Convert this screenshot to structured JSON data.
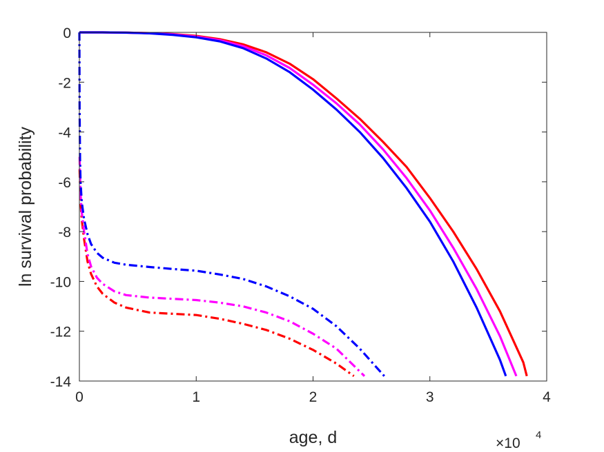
{
  "chart_data": {
    "type": "line",
    "title": "",
    "xlabel": "age, d",
    "ylabel": "ln survival probability",
    "x_multiplier": {
      "base": "×10",
      "exponent": "4"
    },
    "xlim": [
      0,
      40000
    ],
    "ylim": [
      -14,
      0
    ],
    "xticks": [
      0,
      10000,
      20000,
      30000,
      40000
    ],
    "xtick_labels": [
      "0",
      "1",
      "2",
      "3",
      "4"
    ],
    "yticks": [
      0,
      -2,
      -4,
      -6,
      -8,
      -10,
      -12,
      -14
    ],
    "ytick_labels": [
      "0",
      "-2",
      "-4",
      "-6",
      "-8",
      "-10",
      "-12",
      "-14"
    ],
    "grid": false,
    "box": true,
    "series": [
      {
        "color": "#ff0000",
        "style": "solid",
        "x": [
          0,
          2000,
          4000,
          6000,
          8000,
          10000,
          12000,
          14000,
          16000,
          18000,
          20000,
          22000,
          24000,
          26000,
          28000,
          30000,
          32000,
          34000,
          36000,
          38000,
          38300
        ],
        "y": [
          0,
          0,
          -0.01,
          -0.03,
          -0.07,
          -0.14,
          -0.27,
          -0.48,
          -0.8,
          -1.26,
          -1.88,
          -2.65,
          -3.47,
          -4.4,
          -5.4,
          -6.65,
          -8.0,
          -9.5,
          -11.2,
          -13.25,
          -13.8
        ]
      },
      {
        "color": "#ff00ff",
        "style": "solid",
        "x": [
          0,
          2000,
          4000,
          6000,
          8000,
          10000,
          12000,
          14000,
          16000,
          18000,
          20000,
          22000,
          24000,
          26000,
          28000,
          30000,
          32000,
          34000,
          36000,
          37400
        ],
        "y": [
          0,
          0,
          -0.01,
          -0.03,
          -0.08,
          -0.17,
          -0.31,
          -0.55,
          -0.92,
          -1.43,
          -2.1,
          -2.85,
          -3.7,
          -4.7,
          -5.85,
          -7.15,
          -8.65,
          -10.3,
          -12.2,
          -13.8
        ]
      },
      {
        "color": "#0000ff",
        "style": "solid",
        "x": [
          0,
          2000,
          4000,
          6000,
          8000,
          10000,
          12000,
          14000,
          16000,
          18000,
          20000,
          22000,
          24000,
          26000,
          28000,
          30000,
          32000,
          34000,
          36000,
          36500
        ],
        "y": [
          0,
          0,
          -0.01,
          -0.04,
          -0.1,
          -0.2,
          -0.36,
          -0.63,
          -1.05,
          -1.6,
          -2.3,
          -3.1,
          -4.0,
          -5.05,
          -6.25,
          -7.6,
          -9.2,
          -11.05,
          -13.15,
          -13.8
        ]
      },
      {
        "color": "#ff0000",
        "style": "dashdot",
        "x": [
          20,
          100,
          200,
          400,
          700,
          1000,
          1500,
          2000,
          3000,
          4000,
          6000,
          8000,
          10000,
          12000,
          14000,
          16000,
          18000,
          20000,
          22000,
          23500
        ],
        "y": [
          -5.5,
          -6.8,
          -7.5,
          -8.3,
          -9.2,
          -9.7,
          -10.2,
          -10.5,
          -10.85,
          -11.05,
          -11.25,
          -11.3,
          -11.35,
          -11.5,
          -11.7,
          -11.95,
          -12.3,
          -12.75,
          -13.3,
          -13.8
        ]
      },
      {
        "color": "#ff00ff",
        "style": "dashdot",
        "x": [
          20,
          100,
          200,
          400,
          700,
          1000,
          1500,
          2000,
          3000,
          4000,
          6000,
          8000,
          10000,
          12000,
          14000,
          16000,
          18000,
          20000,
          22000,
          24400
        ],
        "y": [
          -5.0,
          -6.5,
          -7.2,
          -8.0,
          -8.9,
          -9.4,
          -9.85,
          -10.1,
          -10.4,
          -10.55,
          -10.65,
          -10.7,
          -10.75,
          -10.85,
          -11.0,
          -11.25,
          -11.6,
          -12.1,
          -12.7,
          -13.8
        ]
      },
      {
        "color": "#0000ff",
        "style": "dashdot",
        "x": [
          0,
          20,
          60,
          100,
          200,
          400,
          700,
          1000,
          1500,
          2000,
          3000,
          4000,
          6000,
          8000,
          10000,
          12000,
          14000,
          16000,
          18000,
          20000,
          22000,
          24000,
          26100
        ],
        "y": [
          0,
          -3.0,
          -5.2,
          -6.0,
          -6.8,
          -7.5,
          -8.1,
          -8.5,
          -8.85,
          -9.05,
          -9.25,
          -9.33,
          -9.42,
          -9.5,
          -9.57,
          -9.72,
          -9.9,
          -10.2,
          -10.6,
          -11.1,
          -11.8,
          -12.7,
          -13.8
        ]
      }
    ]
  }
}
